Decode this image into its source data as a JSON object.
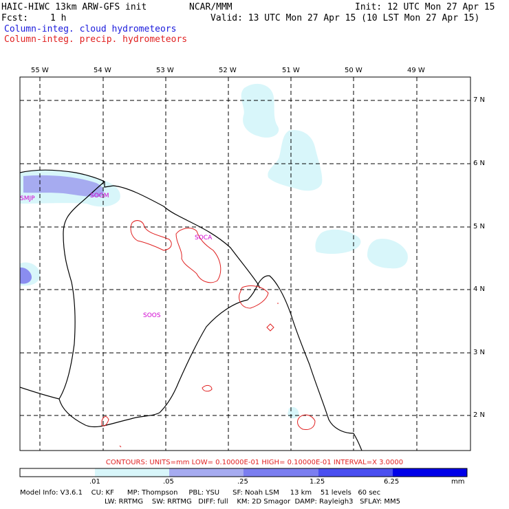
{
  "header": {
    "model_title": "HAIC-HIWC 13km ARW-GFS init",
    "org": "NCAR/MMM",
    "init": "Init: 12 UTC Mon 27 Apr 15",
    "fcst_label": "Fcst:",
    "fcst_value": "1 h",
    "valid": "Valid: 13 UTC Mon 27 Apr 15 (10 LST Mon 27 Apr 15)",
    "field_cloud": "Column-integ. cloud hydrometeors",
    "field_precip": "Column-integ. precip. hydrometeors"
  },
  "map": {
    "lon_labels": [
      "55 W",
      "54 W",
      "53 W",
      "52 W",
      "51 W",
      "50 W",
      "49 W"
    ],
    "lat_labels": [
      "7 N",
      "6 N",
      "5 N",
      "4 N",
      "3 N",
      "2 N"
    ],
    "stations": [
      "SMJP",
      "SOGM",
      "SOCA",
      "SOOS"
    ],
    "colors": {
      "cloud_light": "#d8f6fa",
      "cloud_mid": "#a6abf0",
      "cloud_dark": "#8a8df0",
      "precip": "#e02020",
      "coast": "#000000",
      "grid": "#000000",
      "station": "#d000d0"
    }
  },
  "contours_text": "CONTOURS:  UNITS=mm  LOW= 0.10000E-01  HIGH= 0.10000E-01  INTERVAL=X  3.0000",
  "colorbar": {
    "ticks": [
      ".01",
      ".05",
      ".25",
      "1.25",
      "6.25"
    ],
    "unit": "mm",
    "colors": [
      "#ffffff",
      "#d8f6fa",
      "#a6abf0",
      "#7b7ef0",
      "#4a4ff0",
      "#0000e8"
    ]
  },
  "model_info": {
    "line1": "Model Info: V3.6.1    CU: KF      MP: Thompson     PBL: YSU      SF: Noah LSM     13 km    51 levels   60 sec",
    "line2": "LW: RRTMG    SW: RRTMG   DIFF: full    KM: 2D Smagor  DAMP: Rayleigh3   SFLAY: MM5"
  }
}
